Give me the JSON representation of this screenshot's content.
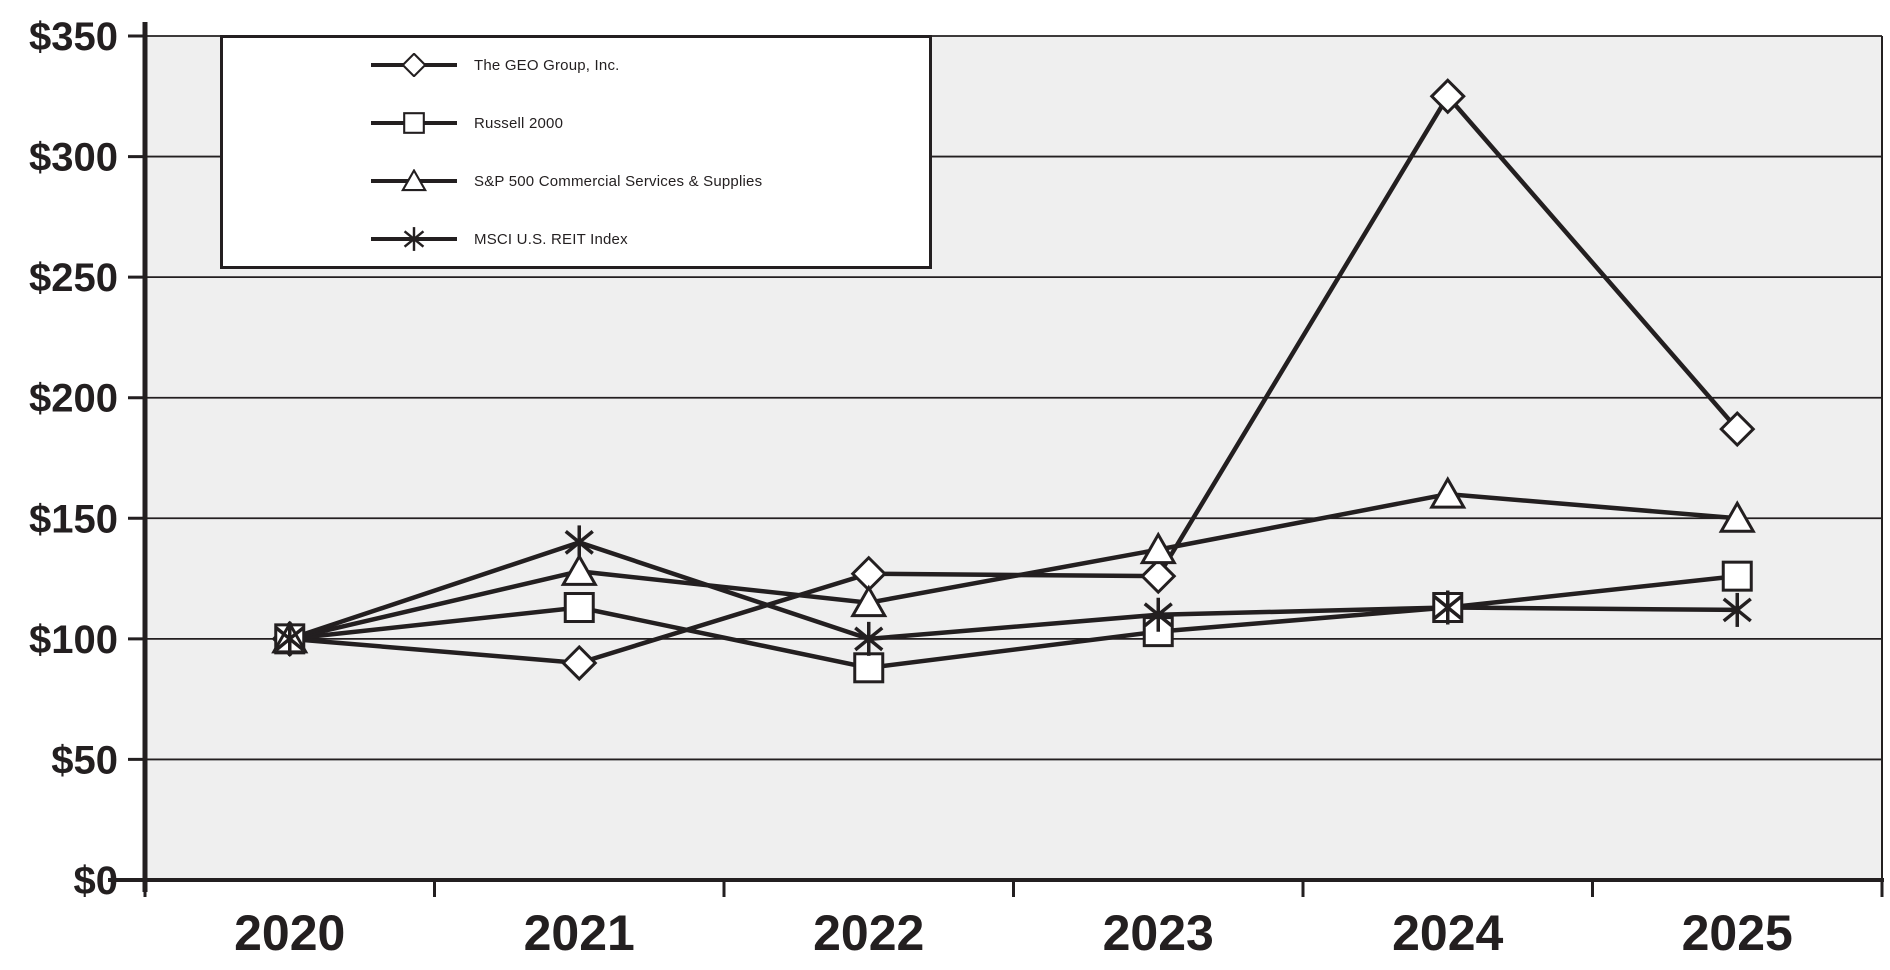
{
  "chart_data": {
    "type": "line",
    "title": "",
    "categories": [
      "2020",
      "2021",
      "2022",
      "2023",
      "2024",
      "2025"
    ],
    "series": [
      {
        "name": "The GEO Group, Inc.",
        "marker": "diamond",
        "values": [
          100,
          90,
          127,
          126,
          325,
          187
        ]
      },
      {
        "name": "Russell 2000",
        "marker": "square",
        "values": [
          100,
          113,
          88,
          103,
          113,
          126
        ]
      },
      {
        "name": "S&P 500 Commercial Services & Supplies",
        "marker": "triangle",
        "values": [
          100,
          128,
          115,
          137,
          160,
          150
        ]
      },
      {
        "name": "MSCI U.S. REIT Index",
        "marker": "asterisk",
        "values": [
          100,
          140,
          100,
          110,
          113,
          112
        ]
      }
    ],
    "xlabel": "",
    "ylabel": "",
    "y_axis": {
      "min": 0,
      "max": 350,
      "step": 50,
      "tick_prefix": "$"
    },
    "y_tick_labels": [
      "$0",
      "$50",
      "$100",
      "$150",
      "$200",
      "$250",
      "$300",
      "$350"
    ],
    "legend": {
      "position": "top-left"
    },
    "grid": true,
    "colors": {
      "line": "#231f20",
      "marker_fill": "#ffffff",
      "plot_background": "#efefef",
      "page_background": "#ffffff",
      "text": "#231f20",
      "legend_background": "#ffffff"
    }
  }
}
